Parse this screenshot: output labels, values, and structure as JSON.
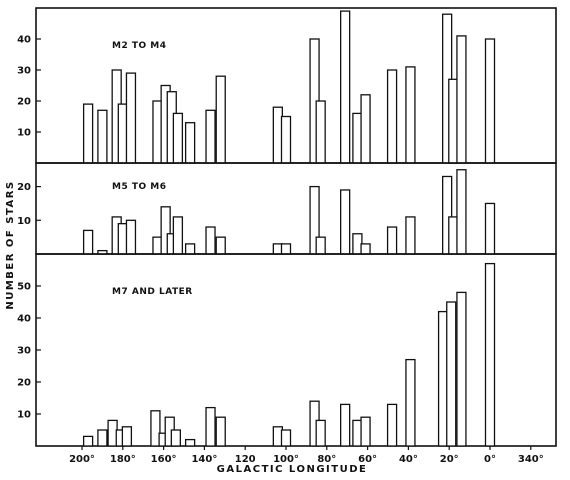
{
  "chart_data": {
    "type": "bar",
    "xlabel": "GALACTIC LONGITUDE",
    "ylabel": "NUMBER OF STARS",
    "x_tick_labels": [
      "200°",
      "180°",
      "160°",
      "140°",
      "120",
      "100°",
      "80°",
      "60°",
      "40°",
      "20°",
      "0°",
      "340°"
    ],
    "panels": [
      {
        "title": "M2 TO M4",
        "ylim": [
          0,
          50
        ],
        "y_tick_labels": [
          "10",
          "20",
          "30",
          "40"
        ],
        "bars": [
          {
            "x": 197,
            "value": 19
          },
          {
            "x": 190,
            "value": 17
          },
          {
            "x": 183,
            "value": 30
          },
          {
            "x": 180,
            "value": 19
          },
          {
            "x": 176,
            "value": 29
          },
          {
            "x": 163,
            "value": 20
          },
          {
            "x": 159,
            "value": 25
          },
          {
            "x": 156,
            "value": 23
          },
          {
            "x": 153,
            "value": 16
          },
          {
            "x": 147,
            "value": 13
          },
          {
            "x": 137,
            "value": 17
          },
          {
            "x": 132,
            "value": 28
          },
          {
            "x": 104,
            "value": 18
          },
          {
            "x": 100,
            "value": 15
          },
          {
            "x": 86,
            "value": 40
          },
          {
            "x": 83,
            "value": 20
          },
          {
            "x": 71,
            "value": 49
          },
          {
            "x": 65,
            "value": 16
          },
          {
            "x": 61,
            "value": 22
          },
          {
            "x": 48,
            "value": 30
          },
          {
            "x": 39,
            "value": 31
          },
          {
            "x": 21,
            "value": 48
          },
          {
            "x": 18,
            "value": 27
          },
          {
            "x": 14,
            "value": 41
          },
          {
            "x": 0,
            "value": 40
          }
        ]
      },
      {
        "title": "M5 TO M6",
        "ylim": [
          0,
          27
        ],
        "y_tick_labels": [
          "10",
          "20"
        ],
        "bars": [
          {
            "x": 197,
            "value": 7
          },
          {
            "x": 190,
            "value": 1
          },
          {
            "x": 183,
            "value": 11
          },
          {
            "x": 180,
            "value": 9
          },
          {
            "x": 176,
            "value": 10
          },
          {
            "x": 163,
            "value": 5
          },
          {
            "x": 159,
            "value": 14
          },
          {
            "x": 156,
            "value": 6
          },
          {
            "x": 153,
            "value": 11
          },
          {
            "x": 147,
            "value": 3
          },
          {
            "x": 137,
            "value": 8
          },
          {
            "x": 132,
            "value": 5
          },
          {
            "x": 104,
            "value": 3
          },
          {
            "x": 100,
            "value": 3
          },
          {
            "x": 86,
            "value": 20
          },
          {
            "x": 83,
            "value": 5
          },
          {
            "x": 71,
            "value": 19
          },
          {
            "x": 65,
            "value": 6
          },
          {
            "x": 61,
            "value": 3
          },
          {
            "x": 48,
            "value": 8
          },
          {
            "x": 39,
            "value": 11
          },
          {
            "x": 21,
            "value": 23
          },
          {
            "x": 18,
            "value": 11
          },
          {
            "x": 14,
            "value": 25
          },
          {
            "x": 0,
            "value": 15
          }
        ]
      },
      {
        "title": "M7 AND LATER",
        "ylim": [
          0,
          60
        ],
        "y_tick_labels": [
          "10",
          "20",
          "30",
          "40",
          "50"
        ],
        "bars": [
          {
            "x": 197,
            "value": 3
          },
          {
            "x": 190,
            "value": 5
          },
          {
            "x": 185,
            "value": 8
          },
          {
            "x": 181,
            "value": 5
          },
          {
            "x": 178,
            "value": 6
          },
          {
            "x": 164,
            "value": 11
          },
          {
            "x": 160,
            "value": 4
          },
          {
            "x": 157,
            "value": 9
          },
          {
            "x": 154,
            "value": 5
          },
          {
            "x": 147,
            "value": 2
          },
          {
            "x": 137,
            "value": 12
          },
          {
            "x": 132,
            "value": 9
          },
          {
            "x": 104,
            "value": 6
          },
          {
            "x": 100,
            "value": 5
          },
          {
            "x": 86,
            "value": 14
          },
          {
            "x": 83,
            "value": 8
          },
          {
            "x": 71,
            "value": 13
          },
          {
            "x": 65,
            "value": 8
          },
          {
            "x": 61,
            "value": 9
          },
          {
            "x": 48,
            "value": 13
          },
          {
            "x": 39,
            "value": 27
          },
          {
            "x": 23,
            "value": 42
          },
          {
            "x": 19,
            "value": 45
          },
          {
            "x": 14,
            "value": 48
          },
          {
            "x": 0,
            "value": 57
          }
        ]
      }
    ]
  }
}
